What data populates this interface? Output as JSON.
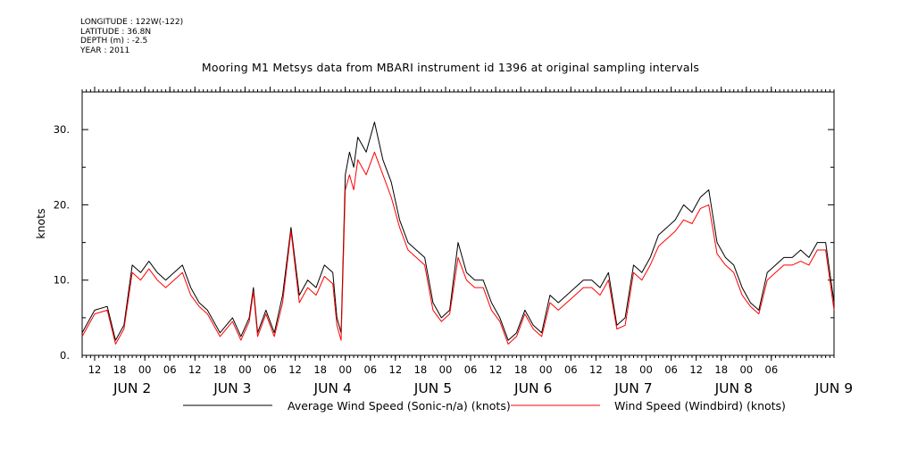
{
  "header": {
    "longitude": "LONGITUDE : 122W(-122)",
    "latitude": "LATITUDE : 36.8N",
    "depth": "DEPTH (m) : -2.5",
    "year": "YEAR : 2011"
  },
  "chart_data": {
    "type": "line",
    "title": "Mooring M1 Metsys data from MBARI instrument id 1396 at original sampling intervals",
    "ylabel": "knots",
    "xlabel": "",
    "ylim": [
      0,
      35
    ],
    "y_ticks": [
      0,
      10,
      20,
      30
    ],
    "y_tick_labels": [
      "0.",
      "10.",
      "20.",
      "30."
    ],
    "x_range_hours": [
      0,
      180
    ],
    "x_hour_tick_labels": [
      "12",
      "18",
      "00",
      "06",
      "12",
      "18",
      "00",
      "06",
      "12",
      "18",
      "00",
      "06",
      "12",
      "18",
      "00",
      "06",
      "12",
      "18",
      "00",
      "06",
      "12",
      "18",
      "00",
      "06",
      "12",
      "18",
      "00",
      "06"
    ],
    "x_day_labels": [
      "JUN  2",
      "JUN  3",
      "JUN  4",
      "JUN  5",
      "JUN  6",
      "JUN  7",
      "JUN  8",
      "JUN  9"
    ],
    "grid": false,
    "legend": "bottom",
    "series": [
      {
        "name": "Average Wind Speed (Sonic-n/a) (knots)",
        "color": "#000000",
        "x": [
          0,
          3,
          6,
          8,
          10,
          12,
          14,
          16,
          18,
          20,
          22,
          24,
          26,
          28,
          30,
          33,
          36,
          38,
          40,
          41,
          42,
          44,
          46,
          48,
          50,
          52,
          54,
          56,
          58,
          60,
          61,
          62,
          63,
          64,
          65,
          66,
          68,
          70,
          72,
          74,
          76,
          78,
          80,
          82,
          84,
          86,
          88,
          90,
          92,
          94,
          96,
          98,
          100,
          102,
          104,
          106,
          108,
          110,
          112,
          114,
          116,
          118,
          120,
          122,
          124,
          126,
          128,
          130,
          132,
          134,
          136,
          138,
          140,
          142,
          144,
          146,
          148,
          150,
          152,
          154,
          156,
          158,
          160,
          162,
          164,
          166,
          168,
          170,
          172,
          174,
          176,
          178,
          180
        ],
        "y": [
          3,
          6,
          6.5,
          2,
          4,
          12,
          11,
          12.5,
          11,
          10,
          11,
          12,
          9,
          7,
          6,
          3,
          5,
          2.5,
          5,
          9,
          3,
          6,
          3,
          8,
          17,
          8,
          10,
          9,
          12,
          11,
          5,
          3,
          24,
          27,
          25,
          29,
          27,
          31,
          26,
          23,
          18,
          15,
          14,
          13,
          7,
          5,
          6,
          15,
          11,
          10,
          10,
          7,
          5,
          2,
          3,
          6,
          4,
          3,
          8,
          7,
          8,
          9,
          10,
          10,
          9,
          11,
          4,
          5,
          12,
          11,
          13,
          16,
          17,
          18,
          20,
          19,
          21,
          22,
          15,
          13,
          12,
          9,
          7,
          6,
          11,
          12,
          13,
          13,
          14,
          13,
          15,
          15,
          7
        ]
      },
      {
        "name": "Wind Speed (Windbird) (knots)",
        "color": "#ff0000",
        "x": [
          0,
          3,
          6,
          8,
          10,
          12,
          14,
          16,
          18,
          20,
          22,
          24,
          26,
          28,
          30,
          33,
          36,
          38,
          40,
          41,
          42,
          44,
          46,
          48,
          50,
          52,
          54,
          56,
          58,
          60,
          61,
          62,
          63,
          64,
          65,
          66,
          68,
          70,
          72,
          74,
          76,
          78,
          80,
          82,
          84,
          86,
          88,
          90,
          92,
          94,
          96,
          98,
          100,
          102,
          104,
          106,
          108,
          110,
          112,
          114,
          116,
          118,
          120,
          122,
          124,
          126,
          128,
          130,
          132,
          134,
          136,
          138,
          140,
          142,
          144,
          146,
          148,
          150,
          152,
          154,
          156,
          158,
          160,
          162,
          164,
          166,
          168,
          170,
          172,
          174,
          176,
          178,
          180
        ],
        "y": [
          2.5,
          5.5,
          6,
          1.5,
          3.5,
          11,
          10,
          11.5,
          10,
          9,
          10,
          11,
          8,
          6.5,
          5.5,
          2.5,
          4.5,
          2,
          4.5,
          8.5,
          2.5,
          5.5,
          2.5,
          7,
          16.5,
          7,
          9,
          8,
          10.5,
          9.5,
          4,
          2,
          22,
          24,
          22,
          26,
          24,
          27,
          24,
          21,
          17,
          14,
          13,
          12,
          6,
          4.5,
          5.5,
          13,
          10,
          9,
          9,
          6,
          4.5,
          1.5,
          2.5,
          5.5,
          3.5,
          2.5,
          7,
          6,
          7,
          8,
          9,
          9,
          8,
          10,
          3.5,
          4,
          11,
          10,
          12,
          14.5,
          15.5,
          16.5,
          18,
          17.5,
          19.5,
          20,
          13.5,
          12,
          11,
          8,
          6.5,
          5.5,
          10,
          11,
          12,
          12,
          12.5,
          12,
          14,
          14,
          6
        ]
      }
    ]
  }
}
